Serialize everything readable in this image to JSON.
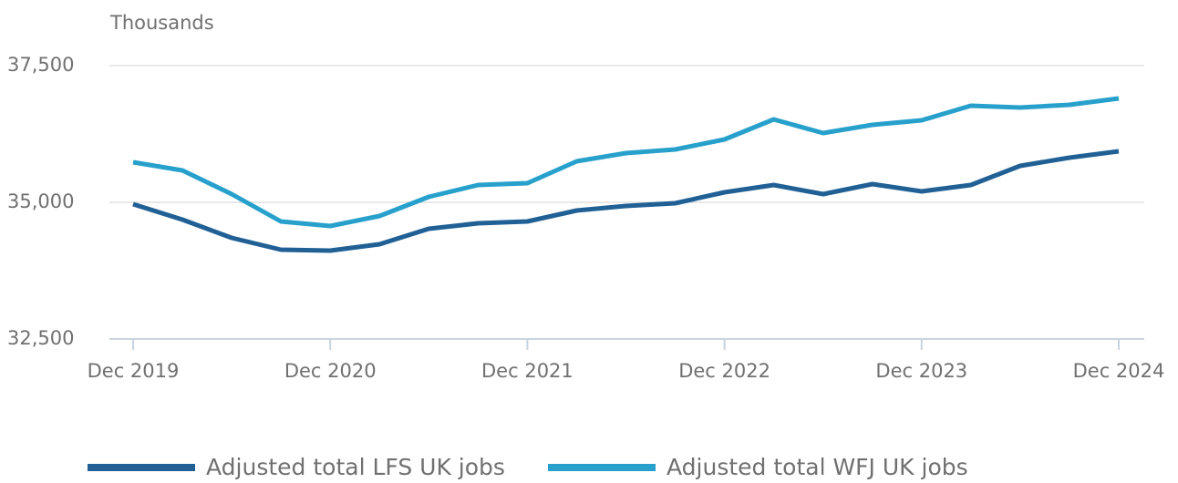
{
  "chart_data": {
    "type": "line",
    "y_label": "Thousands",
    "categories": [
      "Dec 2019",
      null,
      null,
      null,
      "Dec 2020",
      null,
      null,
      null,
      "Dec 2021",
      null,
      null,
      null,
      "Dec 2022",
      null,
      null,
      null,
      "Dec 2023",
      null,
      null,
      null,
      "Dec 2024"
    ],
    "series": [
      {
        "name": "Adjusted total LFS UK jobs",
        "color": "#206095",
        "values": [
          34967,
          34683,
          34350,
          34133,
          34117,
          34233,
          34517,
          34617,
          34650,
          34850,
          34933,
          34983,
          35183,
          35317,
          35150,
          35333,
          35200,
          35317,
          35667,
          35817,
          35933
        ]
      },
      {
        "name": "Adjusted total WFJ UK jobs",
        "color": "#27a0cc",
        "values": [
          35733,
          35583,
          35150,
          34650,
          34567,
          34750,
          35100,
          35317,
          35350,
          35750,
          35900,
          35967,
          36150,
          36517,
          36267,
          36417,
          36500,
          36767,
          36733,
          36783,
          36900
        ]
      }
    ],
    "ylim": [
      32500,
      37500
    ],
    "yticks": [
      {
        "value": 32500,
        "label": "32,500"
      },
      {
        "value": 35000,
        "label": "35,000"
      },
      {
        "value": 37500,
        "label": "37,500"
      }
    ],
    "grid": true,
    "legend": "bottom"
  }
}
